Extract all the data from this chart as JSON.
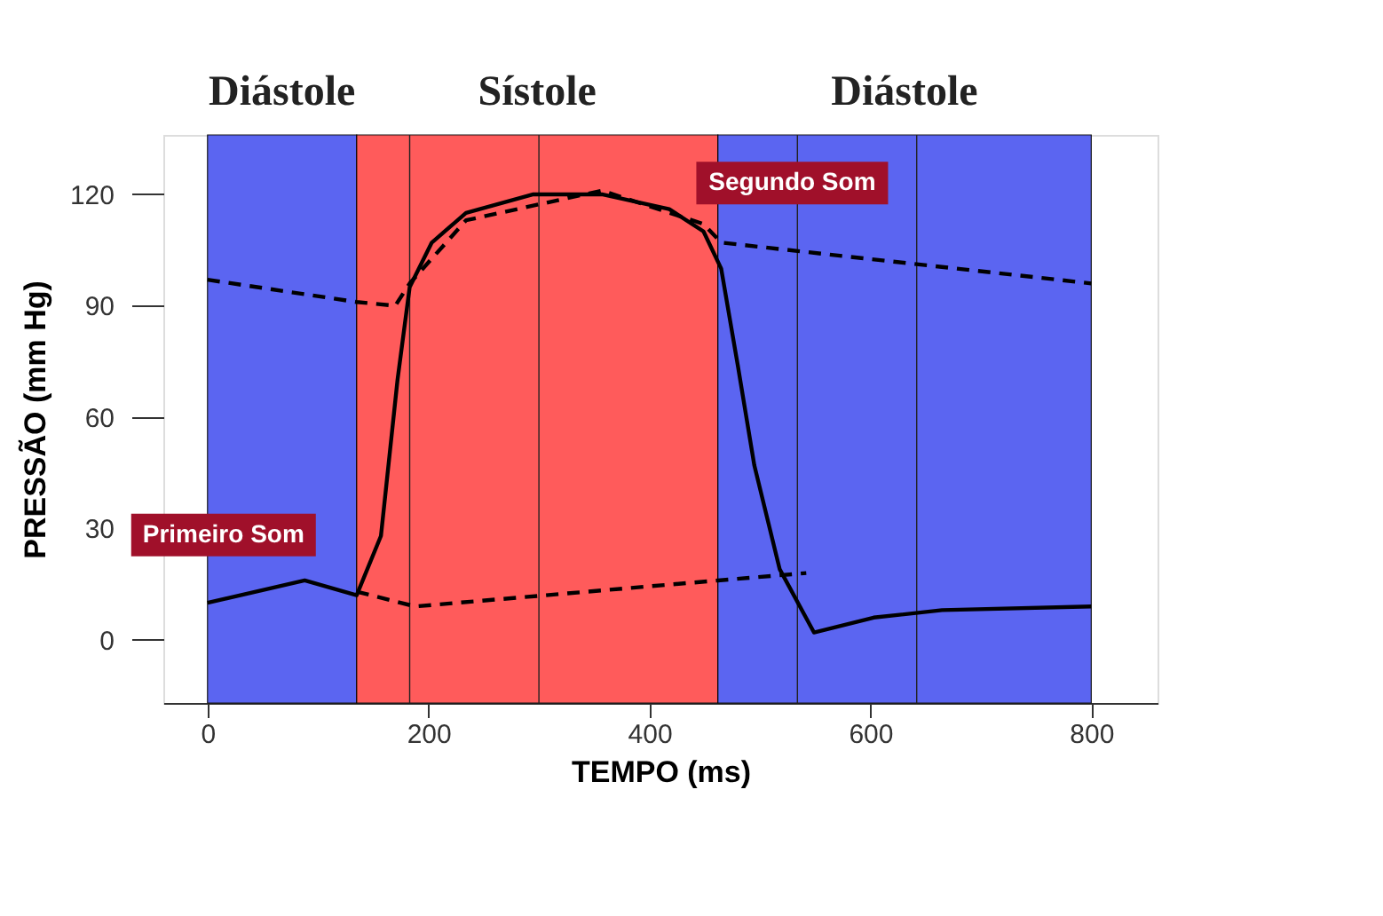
{
  "chart_data": {
    "type": "line",
    "xlabel": "TEMPO (ms)",
    "ylabel": "PRESSÃO (mm Hg)",
    "xlim": [
      -40,
      860
    ],
    "ylim": [
      -17,
      136
    ],
    "xticks": [
      0,
      200,
      400,
      600,
      800
    ],
    "yticks": [
      0,
      30,
      60,
      90,
      120
    ],
    "grid": false,
    "legend": false,
    "marker": "none",
    "series": [
      {
        "color": "#000000",
        "line_style": "solid",
        "x": [
          0,
          88,
          135,
          157,
          172,
          183,
          203,
          234,
          295,
          357,
          418,
          449,
          465,
          480,
          495,
          518,
          549,
          603,
          665,
          800
        ],
        "values": [
          10,
          16,
          12,
          28,
          70,
          95,
          107,
          115,
          120,
          120,
          116,
          110,
          100,
          74,
          47,
          19,
          2,
          6,
          8,
          9
        ]
      },
      {
        "color": "#000000",
        "line_style": "dashed",
        "x": [
          0,
          135,
          170,
          183,
          234,
          357,
          449,
          465,
          800
        ],
        "values": [
          97,
          91,
          90,
          96,
          113,
          121,
          112,
          107,
          96
        ]
      },
      {
        "color": "#000000",
        "line_style": "dashed",
        "x": [
          135,
          188,
          462,
          542
        ],
        "values": [
          13,
          9,
          16,
          18
        ]
      }
    ],
    "bands": [
      {
        "axis": "x",
        "from": 0,
        "to": 135,
        "label": "Diástole",
        "color": "#4a55f0"
      },
      {
        "axis": "x",
        "from": 135,
        "to": 462,
        "label": "Sístole",
        "color": "#ff4a4a"
      },
      {
        "axis": "x",
        "from": 462,
        "to": 800,
        "label": "Diástole",
        "color": "#4a55f0"
      }
    ],
    "ref_lines": [
      {
        "axis": "x",
        "value": 183
      },
      {
        "axis": "x",
        "value": 300
      },
      {
        "axis": "x",
        "value": 534
      },
      {
        "axis": "x",
        "value": 642
      }
    ],
    "annotations": [
      {
        "text": "Primeiro Som",
        "x": 135,
        "y": 12
      },
      {
        "text": "Segundo Som",
        "x": 465,
        "y": 102
      }
    ]
  }
}
